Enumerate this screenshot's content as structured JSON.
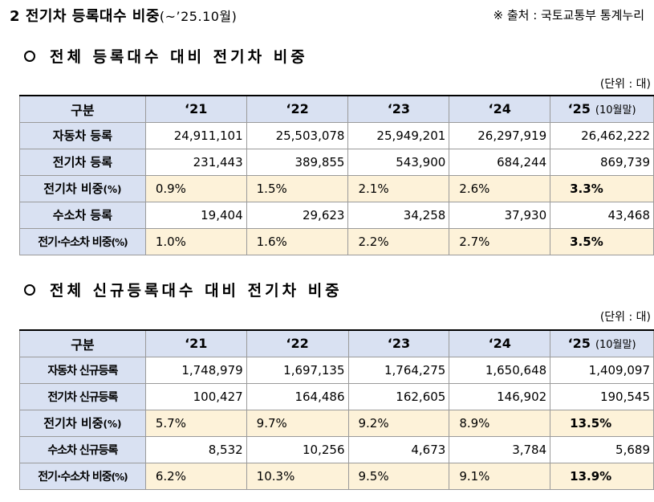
{
  "title": {
    "number": "2",
    "main": "전기차 등록대수 비중",
    "sub": "(~’25.10월)"
  },
  "source": "※ 출처 : 국토교통부 통계누리",
  "sections": [
    {
      "heading": "전체 등록대수 대비 전기차 비중",
      "unit": "(단위 : 대)",
      "header": {
        "label": "구분",
        "years": [
          "‘21",
          "‘22",
          "‘23",
          "‘24",
          "‘25"
        ],
        "last_note": "(10월말)"
      },
      "rows": [
        {
          "label": "자동차 등록",
          "values": [
            "24,911,101",
            "25,503,078",
            "25,949,201",
            "26,297,919",
            "26,462,222"
          ]
        },
        {
          "label": "전기차 등록",
          "values": [
            "231,443",
            "389,855",
            "543,900",
            "684,244",
            "869,739"
          ]
        },
        {
          "label": "전기차 비중",
          "pct": "(%)",
          "values": [
            "0.9%",
            "1.5%",
            "2.1%",
            "2.6%",
            "3.3%"
          ]
        },
        {
          "label": "수소차 등록",
          "values": [
            "19,404",
            "29,623",
            "34,258",
            "37,930",
            "43,468"
          ]
        },
        {
          "label": "전기·수소차 비중",
          "pct": "(%)",
          "values": [
            "1.0%",
            "1.6%",
            "2.2%",
            "2.7%",
            "3.5%"
          ]
        }
      ]
    },
    {
      "heading": "전체 신규등록대수 대비 전기차 비중",
      "unit": "(단위 : 대)",
      "header": {
        "label": "구분",
        "years": [
          "‘21",
          "‘22",
          "‘23",
          "‘24",
          "‘25"
        ],
        "last_note": "(10월말)"
      },
      "rows": [
        {
          "label": "자동차 신규등록",
          "values": [
            "1,748,979",
            "1,697,135",
            "1,764,275",
            "1,650,648",
            "1,409,097"
          ]
        },
        {
          "label": "전기차 신규등록",
          "values": [
            "100,427",
            "164,486",
            "162,605",
            "146,902",
            "190,545"
          ]
        },
        {
          "label": "전기차 비중",
          "pct": "(%)",
          "values": [
            "5.7%",
            "9.7%",
            "9.2%",
            "8.9%",
            "13.5%"
          ]
        },
        {
          "label": "수소차 신규등록",
          "values": [
            "8,532",
            "10,256",
            "4,673",
            "3,784",
            "5,689"
          ]
        },
        {
          "label": "전기·수소차 비중",
          "pct": "(%)",
          "values": [
            "6.2%",
            "10.3%",
            "9.5%",
            "9.1%",
            "13.9%"
          ]
        }
      ]
    }
  ]
}
